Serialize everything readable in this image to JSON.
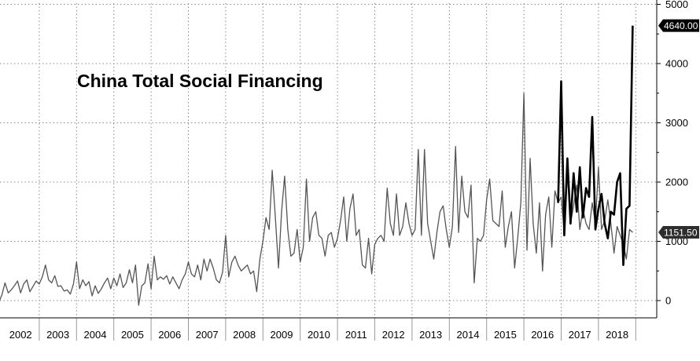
{
  "chart_data": {
    "type": "line",
    "title": "China Total Social Financing",
    "xlabel": "",
    "ylabel": "",
    "x_range": [
      "2001-09",
      "2019-03"
    ],
    "ylim": [
      -100,
      5000
    ],
    "y_ticks": [
      0,
      1000,
      2000,
      3000,
      4000,
      5000
    ],
    "y_tick_labels": [
      "0",
      "1000",
      "2000",
      "3000",
      "4000",
      "5000"
    ],
    "x_tick_labels": [
      "2002",
      "2003",
      "2004",
      "2005",
      "2006",
      "2007",
      "2008",
      "2009",
      "2010",
      "2011",
      "2012",
      "2013",
      "2014",
      "2015",
      "2016",
      "2017",
      "2018"
    ],
    "grid": true,
    "y_axis_side": "right",
    "series": [
      {
        "color": "#555555",
        "points": [
          [
            "2001-12",
            -30
          ],
          [
            "2002-01",
            100
          ],
          [
            "2002-02",
            300
          ],
          [
            "2002-03",
            130
          ],
          [
            "2002-04",
            180
          ],
          [
            "2002-05",
            250
          ],
          [
            "2002-06",
            330
          ],
          [
            "2002-07",
            130
          ],
          [
            "2002-08",
            280
          ],
          [
            "2002-09",
            350
          ],
          [
            "2002-10",
            150
          ],
          [
            "2002-11",
            240
          ],
          [
            "2002-12",
            330
          ],
          [
            "2003-01",
            280
          ],
          [
            "2003-02",
            400
          ],
          [
            "2003-03",
            600
          ],
          [
            "2003-04",
            350
          ],
          [
            "2003-05",
            300
          ],
          [
            "2003-06",
            420
          ],
          [
            "2003-07",
            240
          ],
          [
            "2003-08",
            250
          ],
          [
            "2003-09",
            160
          ],
          [
            "2003-10",
            180
          ],
          [
            "2003-11",
            110
          ],
          [
            "2003-12",
            280
          ],
          [
            "2004-01",
            650
          ],
          [
            "2004-02",
            200
          ],
          [
            "2004-03",
            350
          ],
          [
            "2004-04",
            250
          ],
          [
            "2004-05",
            320
          ],
          [
            "2004-06",
            80
          ],
          [
            "2004-07",
            250
          ],
          [
            "2004-08",
            120
          ],
          [
            "2004-09",
            200
          ],
          [
            "2004-10",
            300
          ],
          [
            "2004-11",
            380
          ],
          [
            "2004-12",
            200
          ],
          [
            "2005-01",
            380
          ],
          [
            "2005-02",
            250
          ],
          [
            "2005-03",
            450
          ],
          [
            "2005-04",
            220
          ],
          [
            "2005-05",
            300
          ],
          [
            "2005-06",
            520
          ],
          [
            "2005-07",
            300
          ],
          [
            "2005-08",
            600
          ],
          [
            "2005-09",
            -80
          ],
          [
            "2005-10",
            250
          ],
          [
            "2005-11",
            300
          ],
          [
            "2005-12",
            620
          ],
          [
            "2006-01",
            200
          ],
          [
            "2006-02",
            750
          ],
          [
            "2006-03",
            350
          ],
          [
            "2006-04",
            400
          ],
          [
            "2006-05",
            360
          ],
          [
            "2006-06",
            420
          ],
          [
            "2006-07",
            280
          ],
          [
            "2006-08",
            400
          ],
          [
            "2006-09",
            300
          ],
          [
            "2006-10",
            200
          ],
          [
            "2006-11",
            350
          ],
          [
            "2006-12",
            450
          ],
          [
            "2007-01",
            650
          ],
          [
            "2007-02",
            450
          ],
          [
            "2007-03",
            400
          ],
          [
            "2007-04",
            600
          ],
          [
            "2007-05",
            350
          ],
          [
            "2007-06",
            700
          ],
          [
            "2007-07",
            500
          ],
          [
            "2007-08",
            700
          ],
          [
            "2007-09",
            550
          ],
          [
            "2007-10",
            350
          ],
          [
            "2007-11",
            300
          ],
          [
            "2007-12",
            480
          ],
          [
            "2008-01",
            1100
          ],
          [
            "2008-02",
            400
          ],
          [
            "2008-03",
            650
          ],
          [
            "2008-04",
            750
          ],
          [
            "2008-05",
            600
          ],
          [
            "2008-06",
            500
          ],
          [
            "2008-07",
            550
          ],
          [
            "2008-08",
            600
          ],
          [
            "2008-09",
            450
          ],
          [
            "2008-10",
            500
          ],
          [
            "2008-11",
            150
          ],
          [
            "2008-12",
            700
          ],
          [
            "2009-01",
            1000
          ],
          [
            "2009-02",
            1400
          ],
          [
            "2009-03",
            1200
          ],
          [
            "2009-04",
            2200
          ],
          [
            "2009-05",
            1400
          ],
          [
            "2009-06",
            550
          ],
          [
            "2009-07",
            1500
          ],
          [
            "2009-08",
            2100
          ],
          [
            "2009-09",
            1200
          ],
          [
            "2009-10",
            750
          ],
          [
            "2009-11",
            800
          ],
          [
            "2009-12",
            1200
          ],
          [
            "2010-01",
            650
          ],
          [
            "2010-02",
            900
          ],
          [
            "2010-03",
            2050
          ],
          [
            "2010-04",
            1000
          ],
          [
            "2010-05",
            1400
          ],
          [
            "2010-06",
            1500
          ],
          [
            "2010-07",
            1100
          ],
          [
            "2010-08",
            1050
          ],
          [
            "2010-09",
            750
          ],
          [
            "2010-10",
            1100
          ],
          [
            "2010-11",
            1150
          ],
          [
            "2010-12",
            900
          ],
          [
            "2011-01",
            1050
          ],
          [
            "2011-02",
            1350
          ],
          [
            "2011-03",
            1750
          ],
          [
            "2011-04",
            1000
          ],
          [
            "2011-05",
            1550
          ],
          [
            "2011-06",
            1800
          ],
          [
            "2011-07",
            1100
          ],
          [
            "2011-08",
            1200
          ],
          [
            "2011-09",
            600
          ],
          [
            "2011-10",
            550
          ],
          [
            "2011-11",
            1050
          ],
          [
            "2011-12",
            450
          ],
          [
            "2012-01",
            950
          ],
          [
            "2012-02",
            1050
          ],
          [
            "2012-03",
            1100
          ],
          [
            "2012-04",
            1000
          ],
          [
            "2012-05",
            1900
          ],
          [
            "2012-06",
            1300
          ],
          [
            "2012-07",
            1100
          ],
          [
            "2012-08",
            1800
          ],
          [
            "2012-09",
            1100
          ],
          [
            "2012-10",
            1250
          ],
          [
            "2012-11",
            1650
          ],
          [
            "2012-12",
            1300
          ],
          [
            "2013-01",
            1100
          ],
          [
            "2013-02",
            1200
          ],
          [
            "2013-03",
            2550
          ],
          [
            "2013-04",
            1100
          ],
          [
            "2013-05",
            2550
          ],
          [
            "2013-06",
            1300
          ],
          [
            "2013-07",
            1000
          ],
          [
            "2013-08",
            700
          ],
          [
            "2013-09",
            1150
          ],
          [
            "2013-10",
            1500
          ],
          [
            "2013-11",
            1600
          ],
          [
            "2013-12",
            1200
          ],
          [
            "2014-01",
            900
          ],
          [
            "2014-02",
            1250
          ],
          [
            "2014-03",
            2600
          ],
          [
            "2014-04",
            1150
          ],
          [
            "2014-05",
            2100
          ],
          [
            "2014-06",
            1500
          ],
          [
            "2014-07",
            1400
          ],
          [
            "2014-08",
            1950
          ],
          [
            "2014-09",
            300
          ],
          [
            "2014-10",
            1050
          ],
          [
            "2014-11",
            1000
          ],
          [
            "2014-12",
            1100
          ],
          [
            "2015-01",
            1700
          ],
          [
            "2015-02",
            2050
          ],
          [
            "2015-03",
            1350
          ],
          [
            "2015-04",
            1300
          ],
          [
            "2015-05",
            1250
          ],
          [
            "2015-06",
            1850
          ],
          [
            "2015-07",
            900
          ],
          [
            "2015-08",
            1250
          ],
          [
            "2015-09",
            1500
          ],
          [
            "2015-10",
            550
          ],
          [
            "2015-11",
            1050
          ],
          [
            "2015-12",
            1650
          ],
          [
            "2016-01",
            3500
          ],
          [
            "2016-02",
            850
          ],
          [
            "2016-03",
            2400
          ],
          [
            "2016-04",
            1300
          ],
          [
            "2016-05",
            800
          ],
          [
            "2016-06",
            1650
          ],
          [
            "2016-07",
            500
          ],
          [
            "2016-08",
            1450
          ],
          [
            "2016-09",
            1750
          ],
          [
            "2016-10",
            900
          ],
          [
            "2016-11",
            1850
          ],
          [
            "2016-12",
            1650
          ],
          [
            "2017-01",
            1750
          ],
          [
            "2017-02",
            1150
          ],
          [
            "2017-03",
            2150
          ],
          [
            "2017-04",
            1300
          ],
          [
            "2017-05",
            1600
          ],
          [
            "2017-06",
            1950
          ],
          [
            "2017-07",
            1200
          ],
          [
            "2017-08",
            1550
          ],
          [
            "2017-09",
            1300
          ],
          [
            "2017-10",
            1200
          ],
          [
            "2017-11",
            1650
          ],
          [
            "2017-12",
            1300
          ],
          [
            "2018-01",
            2250
          ],
          [
            "2018-02",
            1200
          ],
          [
            "2018-03",
            1350
          ],
          [
            "2018-04",
            1700
          ],
          [
            "2018-05",
            1300
          ],
          [
            "2018-06",
            800
          ],
          [
            "2018-07",
            1250
          ],
          [
            "2018-08",
            1100
          ],
          [
            "2018-09",
            950
          ],
          [
            "2018-10",
            700
          ],
          [
            "2018-11",
            1200
          ],
          [
            "2018-12",
            1151.5
          ]
        ]
      },
      {
        "color": "#000000",
        "points": [
          [
            "2016-12",
            1650
          ],
          [
            "2017-01",
            3700
          ],
          [
            "2017-02",
            1100
          ],
          [
            "2017-03",
            2400
          ],
          [
            "2017-04",
            1300
          ],
          [
            "2017-05",
            2150
          ],
          [
            "2017-06",
            1500
          ],
          [
            "2017-07",
            2250
          ],
          [
            "2017-08",
            1400
          ],
          [
            "2017-09",
            1900
          ],
          [
            "2017-10",
            1750
          ],
          [
            "2017-11",
            3100
          ],
          [
            "2017-12",
            1200
          ],
          [
            "2018-01",
            1550
          ],
          [
            "2018-02",
            1800
          ],
          [
            "2018-03",
            1300
          ],
          [
            "2018-04",
            1050
          ],
          [
            "2018-05",
            1500
          ],
          [
            "2018-06",
            1450
          ],
          [
            "2018-07",
            2000
          ],
          [
            "2018-08",
            2150
          ],
          [
            "2018-09",
            600
          ],
          [
            "2018-10",
            1550
          ],
          [
            "2018-11",
            1600
          ],
          [
            "2018-12",
            4640
          ]
        ]
      }
    ],
    "callouts": [
      {
        "label": "4640.00",
        "value": 4640,
        "bg": "#000000"
      },
      {
        "label": "1151.50",
        "value": 1151.5,
        "bg": "#2e2e2e"
      }
    ]
  }
}
